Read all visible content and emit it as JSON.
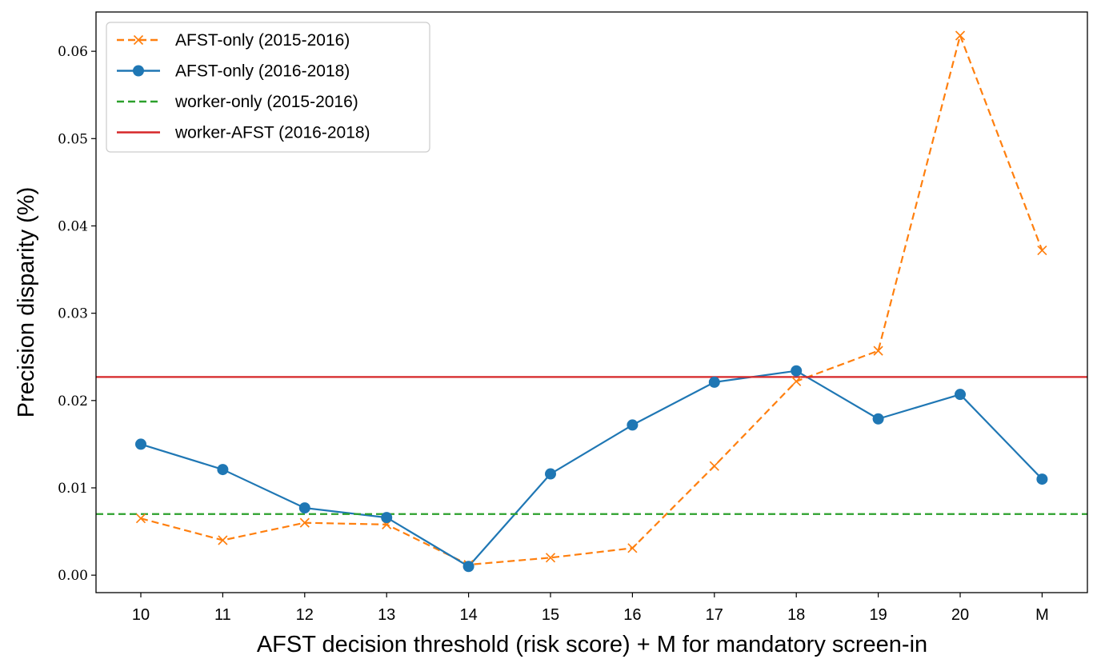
{
  "chart_data": {
    "type": "line",
    "xlabel": "AFST decision threshold (risk score) + M for mandatory screen-in",
    "ylabel": "Precision disparity (%)",
    "categories": [
      "10",
      "11",
      "12",
      "13",
      "14",
      "15",
      "16",
      "17",
      "18",
      "19",
      "20",
      "M"
    ],
    "ylim": [
      -0.002,
      0.0645
    ],
    "yticks": [
      "0.00",
      "0.01",
      "0.02",
      "0.03",
      "0.04",
      "0.05",
      "0.06"
    ],
    "grid": false,
    "legend_position": "top-left",
    "series": [
      {
        "name": "AFST-only (2015-2016)",
        "style": "dashed",
        "marker": "x",
        "color": "#ff7f0e",
        "values": [
          0.0065,
          0.004,
          0.006,
          0.0058,
          0.0012,
          0.002,
          0.0031,
          0.0125,
          0.0222,
          0.0257,
          0.0618,
          0.0372
        ]
      },
      {
        "name": "AFST-only (2016-2018)",
        "style": "solid",
        "marker": "circle",
        "color": "#1f77b4",
        "values": [
          0.015,
          0.0121,
          0.0077,
          0.0066,
          0.001,
          0.0116,
          0.0172,
          0.0221,
          0.0234,
          0.0179,
          0.0207,
          0.011
        ]
      },
      {
        "name": "worker-only (2015-2016)",
        "style": "dashed",
        "marker": "none",
        "color": "#2ca02c",
        "constant": 0.007
      },
      {
        "name": "worker-AFST (2016-2018)",
        "style": "solid",
        "marker": "none",
        "color": "#d62728",
        "constant": 0.0227
      }
    ]
  }
}
